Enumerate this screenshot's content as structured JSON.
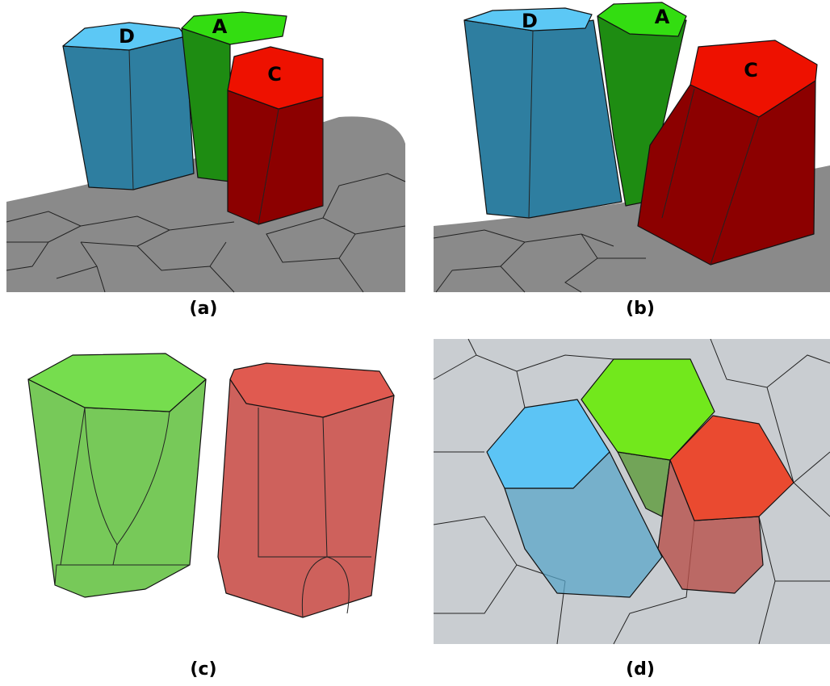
{
  "panels": [
    {
      "caption": "(a)",
      "labels": [
        "D",
        "A",
        "C"
      ]
    },
    {
      "caption": "(b)",
      "labels": [
        "D",
        "A",
        "C"
      ]
    },
    {
      "caption": "(c)"
    },
    {
      "caption": "(d)"
    }
  ]
}
